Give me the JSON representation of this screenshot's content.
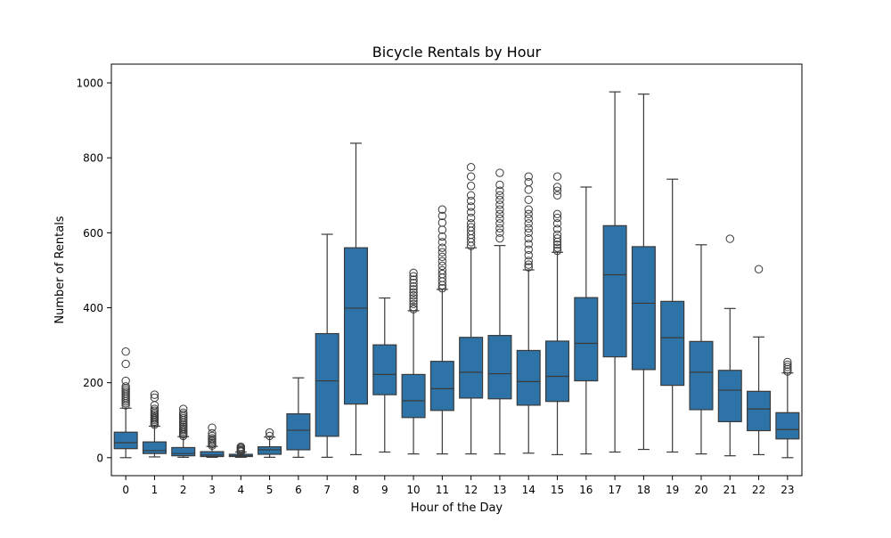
{
  "chart_data": {
    "type": "box",
    "title": "Bicycle Rentals by Hour",
    "xlabel": "Hour of the Day",
    "ylabel": "Number of Rentals",
    "ylim": [
      -48,
      1050
    ],
    "yticks": [
      0,
      200,
      400,
      600,
      800,
      1000
    ],
    "categories": [
      "0",
      "1",
      "2",
      "3",
      "4",
      "5",
      "6",
      "7",
      "8",
      "9",
      "10",
      "11",
      "12",
      "13",
      "14",
      "15",
      "16",
      "17",
      "18",
      "19",
      "20",
      "21",
      "22",
      "23"
    ],
    "box_color": "#2e73a8",
    "line_color": "#3a3a3a",
    "grid": false,
    "legend": "none",
    "boxes": [
      {
        "q1": 24,
        "median": 40,
        "q3": 68,
        "whisker_low": 0,
        "whisker_high": 132,
        "outliers": [
          140,
          145,
          150,
          155,
          160,
          165,
          170,
          175,
          180,
          185,
          190,
          205,
          250,
          283
        ]
      },
      {
        "q1": 11,
        "median": 19,
        "q3": 42,
        "whisker_low": 2,
        "whisker_high": 84,
        "outliers": [
          88,
          92,
          96,
          100,
          104,
          108,
          112,
          116,
          120,
          125,
          130,
          140,
          160,
          168
        ]
      },
      {
        "q1": 5,
        "median": 11,
        "q3": 27,
        "whisker_low": 1,
        "whisker_high": 56,
        "outliers": [
          58,
          62,
          66,
          70,
          74,
          78,
          82,
          86,
          90,
          95,
          100,
          105,
          110,
          115,
          120,
          130
        ]
      },
      {
        "q1": 3,
        "median": 7,
        "q3": 16,
        "whisker_low": 1,
        "whisker_high": 30,
        "outliers": [
          32,
          36,
          40,
          44,
          48,
          52,
          58,
          65,
          80
        ]
      },
      {
        "q1": 3,
        "median": 5,
        "q3": 9,
        "whisker_low": 1,
        "whisker_high": 15,
        "outliers": [
          16,
          18,
          20,
          23,
          26,
          29
        ]
      },
      {
        "q1": 9,
        "median": 21,
        "q3": 29,
        "whisker_low": 1,
        "whisker_high": 55,
        "outliers": [
          58,
          67
        ]
      },
      {
        "q1": 21,
        "median": 73,
        "q3": 117,
        "whisker_low": 1,
        "whisker_high": 213,
        "outliers": []
      },
      {
        "q1": 57,
        "median": 205,
        "q3": 331,
        "whisker_low": 1,
        "whisker_high": 596,
        "outliers": []
      },
      {
        "q1": 143,
        "median": 399,
        "q3": 560,
        "whisker_low": 8,
        "whisker_high": 839,
        "outliers": []
      },
      {
        "q1": 168,
        "median": 222,
        "q3": 301,
        "whisker_low": 15,
        "whisker_high": 426,
        "outliers": []
      },
      {
        "q1": 107,
        "median": 152,
        "q3": 222,
        "whisker_low": 10,
        "whisker_high": 392,
        "outliers": [
          396,
          402,
          410,
          418,
          425,
          433,
          441,
          449,
          457,
          466,
          475,
          484,
          493
        ]
      },
      {
        "q1": 126,
        "median": 184,
        "q3": 257,
        "whisker_low": 10,
        "whisker_high": 449,
        "outliers": [
          452,
          460,
          470,
          480,
          490,
          500,
          512,
          524,
          536,
          548,
          560,
          575,
          590,
          608,
          627,
          645,
          662
        ]
      },
      {
        "q1": 159,
        "median": 228,
        "q3": 321,
        "whisker_low": 10,
        "whisker_high": 560,
        "outliers": [
          565,
          575,
          585,
          595,
          605,
          615,
          625,
          640,
          655,
          670,
          685,
          700,
          725,
          750,
          775
        ]
      },
      {
        "q1": 157,
        "median": 224,
        "q3": 326,
        "whisker_low": 10,
        "whisker_high": 566,
        "outliers": [
          585,
          600,
          612,
          625,
          638,
          650,
          662,
          675,
          688,
          700,
          712,
          728,
          760
        ]
      },
      {
        "q1": 140,
        "median": 203,
        "q3": 286,
        "whisker_low": 12,
        "whisker_high": 501,
        "outliers": [
          508,
          515,
          525,
          540,
          555,
          570,
          585,
          600,
          612,
          625,
          638,
          650,
          662,
          688,
          715,
          735,
          750
        ]
      },
      {
        "q1": 150,
        "median": 217,
        "q3": 311,
        "whisker_low": 8,
        "whisker_high": 548,
        "outliers": [
          552,
          560,
          568,
          576,
          585,
          595,
          610,
          625,
          640,
          650,
          700,
          712,
          722,
          750
        ]
      },
      {
        "q1": 205,
        "median": 305,
        "q3": 427,
        "whisker_low": 10,
        "whisker_high": 722,
        "outliers": []
      },
      {
        "q1": 269,
        "median": 488,
        "q3": 619,
        "whisker_low": 15,
        "whisker_high": 976,
        "outliers": []
      },
      {
        "q1": 235,
        "median": 412,
        "q3": 563,
        "whisker_low": 22,
        "whisker_high": 970,
        "outliers": []
      },
      {
        "q1": 193,
        "median": 320,
        "q3": 417,
        "whisker_low": 15,
        "whisker_high": 743,
        "outliers": []
      },
      {
        "q1": 128,
        "median": 228,
        "q3": 310,
        "whisker_low": 10,
        "whisker_high": 568,
        "outliers": []
      },
      {
        "q1": 96,
        "median": 180,
        "q3": 233,
        "whisker_low": 5,
        "whisker_high": 398,
        "outliers": [
          584
        ]
      },
      {
        "q1": 72,
        "median": 130,
        "q3": 177,
        "whisker_low": 8,
        "whisker_high": 322,
        "outliers": [
          503
        ]
      },
      {
        "q1": 50,
        "median": 75,
        "q3": 120,
        "whisker_low": 0,
        "whisker_high": 226,
        "outliers": [
          230,
          236,
          242,
          248,
          255
        ]
      }
    ]
  }
}
